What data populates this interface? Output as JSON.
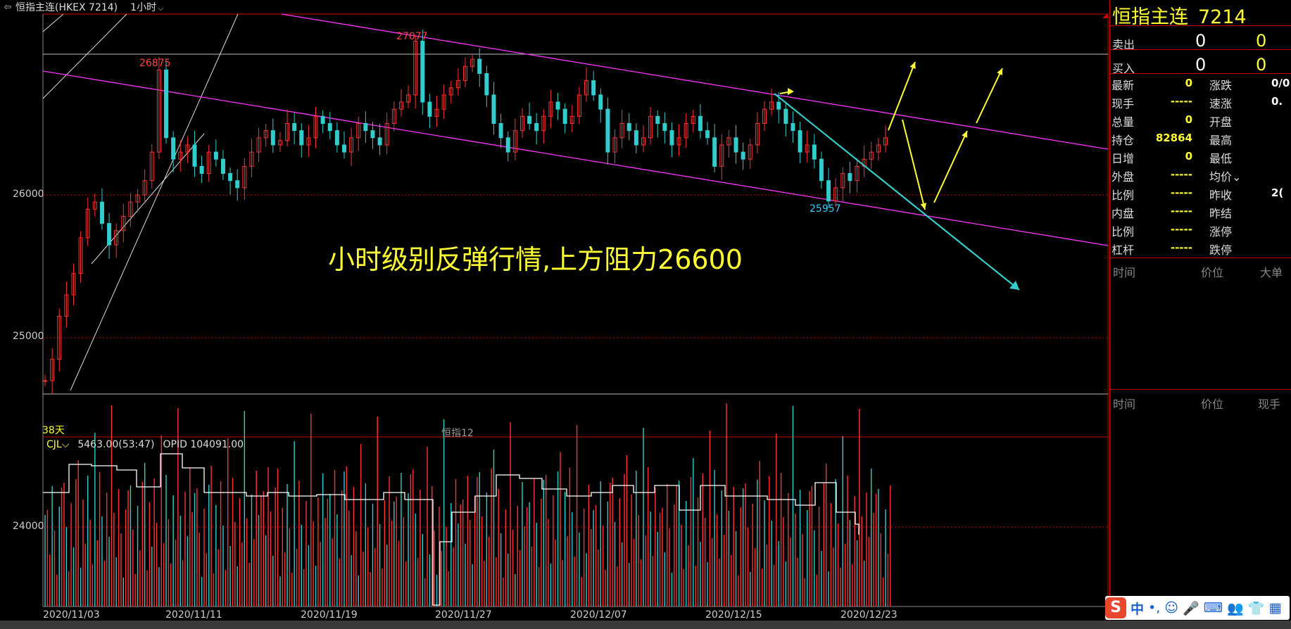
{
  "topbar": {
    "back_glyph": "⇦",
    "instrument": "恒指主连(HKEX 7214)",
    "period": "1小时",
    "period_chevron": "⌵"
  },
  "price_axis": [
    {
      "label": "26000",
      "value": 26000
    },
    {
      "label": "25000",
      "value": 25000
    }
  ],
  "volume_axis": [
    {
      "label": "24000"
    }
  ],
  "date_axis": [
    "2020/11/03",
    "2020/11/11",
    "2020/11/19",
    "2020/11/27",
    "2020/12/07",
    "2020/12/15",
    "2020/12/23"
  ],
  "peaks": [
    {
      "label": "26875",
      "value": 26875,
      "color": "#ff3333"
    },
    {
      "label": "27077",
      "value": 27077,
      "color": "#ff3333"
    },
    {
      "label": "25957",
      "value": 25957,
      "color": "#33ccff"
    }
  ],
  "annotation_text": "小时级别反弹行情,上方阻力26600",
  "days_label": "38天",
  "index_label": "恒指12",
  "volume_header": {
    "indicator": "CJL",
    "chevron": "⌵",
    "volume": "5463.00(53:47)",
    "opid": "OPID 104091.00"
  },
  "colors": {
    "up": "#ff3333",
    "down": "#33cccc",
    "channel": "#ff33ff",
    "trend_arrow": "#33cccc",
    "forecast_arrow": "#ffff33",
    "grid_red": "#cc0000"
  },
  "chart_data": {
    "type": "candlestick",
    "x": [
      "2020/11/03",
      "2020/11/11",
      "2020/11/19",
      "2020/11/27",
      "2020/12/07",
      "2020/12/15",
      "2020/12/23"
    ],
    "y_labels_visible": [
      26000,
      25000
    ],
    "high_marked": 27077,
    "recent_low_marked": 25957,
    "prior_high_marked": 26875,
    "close_path": [
      24700,
      24850,
      25150,
      25300,
      25450,
      25700,
      25900,
      25950,
      25800,
      25650,
      25750,
      25850,
      25950,
      26000,
      26100,
      26300,
      26875,
      26400,
      26250,
      26300,
      26350,
      26200,
      26150,
      26300,
      26250,
      26150,
      26100,
      26050,
      26200,
      26300,
      26400,
      26450,
      26350,
      26380,
      26500,
      26450,
      26350,
      26400,
      26550,
      26500,
      26450,
      26350,
      26300,
      26400,
      26500,
      26450,
      26400,
      26350,
      26500,
      26600,
      26650,
      26700,
      27077,
      26650,
      26550,
      26600,
      26700,
      26750,
      26800,
      26900,
      26950,
      26850,
      26700,
      26500,
      26400,
      26300,
      26450,
      26550,
      26500,
      26450,
      26550,
      26650,
      26600,
      26500,
      26550,
      26700,
      26800,
      26700,
      26600,
      26300,
      26400,
      26500,
      26450,
      26350,
      26400,
      26550,
      26500,
      26450,
      26350,
      26400,
      26500,
      26550,
      26450,
      26400,
      26200,
      26350,
      26400,
      26300,
      26250,
      26350,
      26500,
      26600,
      26650,
      26600,
      26500,
      26450,
      26300,
      26350,
      26250,
      26100,
      25957,
      26050,
      26150,
      26100,
      26200,
      26250,
      26300,
      26350,
      26400
    ]
  },
  "panel": {
    "title_name": "恒指主连",
    "title_code": "7214",
    "orderbook": [
      {
        "label": "卖出",
        "v1": "0",
        "v2": "0"
      },
      {
        "label": "买入",
        "v1": "0",
        "v2": "0"
      }
    ],
    "quotes": [
      {
        "l1": "最新",
        "v1": "0",
        "l2": "涨跌",
        "v2": "0/0."
      },
      {
        "l1": "现手",
        "v1": "-----",
        "l2": "速涨",
        "v2": "0."
      },
      {
        "l1": "总量",
        "v1": "0",
        "l2": "开盘",
        "v2": ""
      },
      {
        "l1": "持仓",
        "v1": "82864",
        "l2": "最高",
        "v2": ""
      },
      {
        "l1": "日增",
        "v1": "0",
        "l2": "最低",
        "v2": ""
      },
      {
        "l1": "外盘",
        "v1": "-----",
        "l2": "均价⌄",
        "v2": ""
      },
      {
        "l1": "比例",
        "v1": "-----",
        "l2": "昨收",
        "v2": "2("
      },
      {
        "l1": "内盘",
        "v1": "-----",
        "l2": "昨结",
        "v2": ""
      },
      {
        "l1": "比例",
        "v1": "-----",
        "l2": "涨停",
        "v2": ""
      },
      {
        "l1": "杠杆",
        "v1": "-----",
        "l2": "跌停",
        "v2": ""
      }
    ],
    "trades_header": {
      "time": "时间",
      "price": "价位",
      "big": "大单"
    },
    "ticks_header": {
      "time": "时间",
      "price": "价位",
      "hand": "现手"
    }
  },
  "ime": {
    "logo": "S",
    "items": [
      "中",
      "•,",
      "☺",
      "🎤",
      "⌨",
      "👥",
      "👕",
      "▦"
    ]
  }
}
